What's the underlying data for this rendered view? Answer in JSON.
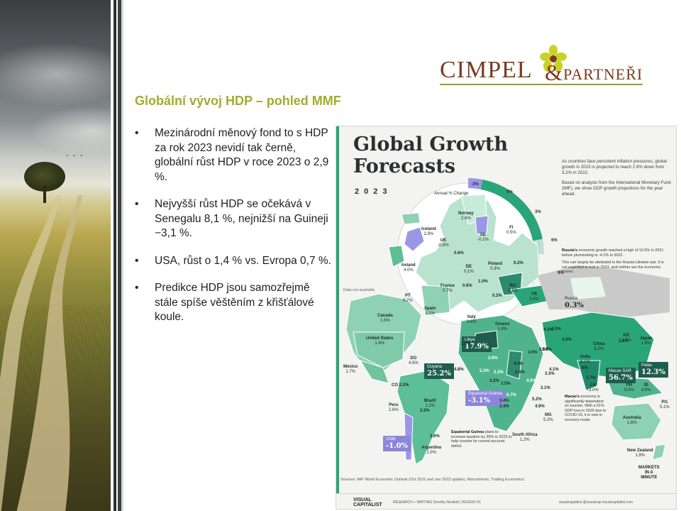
{
  "logo": {
    "brand": "CIMPEL",
    "ampersand": "&",
    "partners": "PARTNEŘI"
  },
  "heading": "Globální vývoj HDP – pohled MMF",
  "bullets": [
    "Mezinárodní měnový fond to s HDP za rok 2023 nevidí tak černě, globální růst HDP v roce 2023 o 2,9 %.",
    "Nejvyšší růst HDP se očekává v Senegalu 8,1 %, nejnižší na Guineji −3,1 %.",
    "USA, růst o 1,4 % vs. Evropa 0,7 %.",
    "Predikce HDP jsou samozřejmě stále spíše věštěním z křišťálové koule."
  ],
  "bullet_symbol": "•",
  "infographic": {
    "title_line1": "Global Growth",
    "title_line2": "Forecasts",
    "year": "2023",
    "intro_p1": "As countries face persistent inflation pressures, global growth in 2023 is projected to reach 2.9% down from 3.2% in 2022.",
    "intro_p2": "Based on analysis from the International Monetary Fund (IMF), we show GDP growth projections for the year ahead.",
    "legend_title": "Annual % Change",
    "legend_ticks": [
      "-3%",
      "0%",
      "3%",
      "6%",
      "9%"
    ],
    "no_data": "Data not available.",
    "russia_note_bold": "Russia's",
    "russia_note": " economic growth reached a high of 10.5% in 2021 before plummeting to -4.1% in 2022.",
    "russia_note2": "This can largely be attributed to the Russia-Ukraine war. It is not expected to end in 2023, and neither are the economic losses.",
    "macao_note_bold": "Macao's",
    "macao_note": " economy is significantly dependent on tourism. With a 51% GDP loss in 2020 due to COVID-19, it is now in recovery mode.",
    "eg_note_bold": "Equatorial Guinea",
    "eg_note": " plans to increase taxation by 35% in 2023 to help counter its current account deficit.",
    "source": "Sources: IMF World Economic Outlook (Oct 2022 and Jan 2023 update), Macrotrends, Trading Economics",
    "footer_brand1": "VISUAL",
    "footer_brand2": "CAPITALIST",
    "footer_credits": "RESEARCH + WRITING Dorothy Neufeld  |  DESIGN VC",
    "footer_social": "visualcapitalist   @visualcap   visualcapitalist.com",
    "mim1": "MARKETS",
    "mim2": "IN A",
    "mim3": "MINUTE",
    "countries": {
      "norway": [
        "Norway",
        "2.6%"
      ],
      "iceland": [
        "Iceland",
        "2.9%"
      ],
      "se": [
        "SE",
        "-0.1%"
      ],
      "fi": [
        "FI",
        "0.5%"
      ],
      "uk": [
        "UK",
        "-0.6%"
      ],
      "ireland": [
        "Ireland",
        "4.0%"
      ],
      "de": [
        "DE",
        "0.1%"
      ],
      "poland": [
        "Poland",
        "0.3%"
      ],
      "france": [
        "France",
        "0.7%"
      ],
      "ro": [
        "RO",
        "3.1%"
      ],
      "pt": [
        "PT",
        "0.7%"
      ],
      "spain": [
        "Spain",
        "1.1%"
      ],
      "italy": [
        "Italy",
        "0.6%"
      ],
      "greece": [
        "Greece",
        "1.8%"
      ],
      "tr": [
        "TR",
        "3.0%"
      ],
      "russia": [
        "Russia",
        "0.3%"
      ],
      "canada": [
        "Canada",
        "1.5%"
      ],
      "us": [
        "United States",
        "1.4%"
      ],
      "mexico": [
        "Mexico",
        "1.7%"
      ],
      "do": [
        "DO",
        "4.5%"
      ],
      "guyana": [
        "Guyana",
        "25.2%"
      ],
      "co": [
        "CO",
        "2.2%"
      ],
      "peru": [
        "Peru",
        "2.6%"
      ],
      "brazil": [
        "Brazil",
        "1.2%"
      ],
      "chile": [
        "Chile",
        "-1.0%"
      ],
      "argentina": [
        "Argentina",
        "2.0%"
      ],
      "libya": [
        "Libya",
        "17.9%"
      ],
      "eqguinea": [
        "Equatorial Guinea",
        "-3.1%"
      ],
      "sa": [
        "South Africa",
        "1.2%"
      ],
      "mg": [
        "MG",
        "5.2%"
      ],
      "india": [
        "India",
        "6.1%"
      ],
      "china": [
        "China",
        "5.2%"
      ],
      "kr": [
        "KR",
        "1.7%"
      ],
      "japan": [
        "Japan",
        "1.8%"
      ],
      "macao": [
        "Macao SAR",
        "56.7%"
      ],
      "palau": [
        "Palau",
        "12.3%"
      ],
      "lk": [
        "LK",
        "-3.0%"
      ],
      "ph": [
        "PH",
        "5.0%"
      ],
      "id": [
        "ID",
        "4.8%"
      ],
      "pg": [
        "PG",
        "5.1%"
      ],
      "australia": [
        "Australia",
        "1.6%"
      ],
      "nz": [
        "New Zealand",
        "1.9%"
      ]
    },
    "misc_values": [
      "0.6%",
      "0.8%",
      "1.0%",
      "0.2%",
      "0.2%",
      "1.6%",
      "2.6%",
      "4.8%",
      "5.3%",
      "2.3%",
      "3.2%",
      "4.4%",
      "2.6%",
      "4.3%",
      "3.2%",
      "3.5%",
      "6.7%",
      "3.4%",
      "5.2%",
      "4.9%",
      "4.0%",
      "3.1%",
      "3.3%",
      "3.5%",
      "2.6%",
      "4.3%",
      "4.1%",
      "2.0%",
      "4.5%",
      "6%",
      "3.7%",
      "2.8%",
      "3.6%",
      "3.4%"
    ]
  }
}
